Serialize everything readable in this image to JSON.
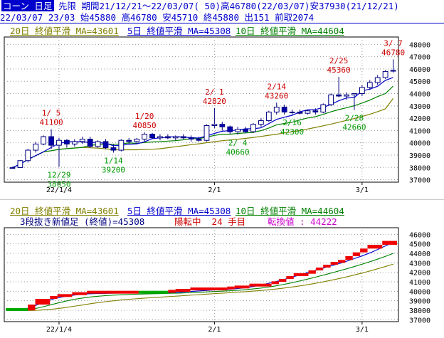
{
  "header": {
    "title": "コーン 日足",
    "line1_info": "先限 期間21/12/21～22/03/07( 50)高46780(22/03/07)安37930(21/12/21)",
    "line2_info": "22/03/07 23/03 始45880 高46780 安45710 終45880 出151 前取2074"
  },
  "colors": {
    "ma20": "#808000",
    "ma5": "#0000cc",
    "ma10": "#008000",
    "ku_red": "#ee0000",
    "ku_green": "#00aa00",
    "annotation_high": "#cc0000",
    "annotation_low": "#009900",
    "shinne_label": "#000080",
    "shinne_status": "#cc0000",
    "tenkan": "#cc00cc"
  },
  "top_legend": {
    "ma20": "20日 終値平滑 MA=43601",
    "ma5": "5日 終値平滑 MA=45308",
    "ma10": "10日 終値平滑 MA=44604"
  },
  "bottom_legend": {
    "ma20": "20日 終値平滑 MA=43601",
    "ma5": "5日 終値平滑 MA=45308",
    "ma10": "10日 終値平滑 MA=44604",
    "shinne_label": "3段抜き新値足 (終値)=45308",
    "shinne_status": "陽転中  24 手目",
    "tenkan": "転換値 : 44222"
  },
  "chart_data": [
    {
      "type": "candlestick",
      "panel": "top",
      "ylim": [
        36800,
        48600
      ],
      "yticks": [
        37000,
        38000,
        39000,
        40000,
        41000,
        42000,
        43000,
        44000,
        45000,
        46000,
        47000,
        48000
      ],
      "xtick_labels": [
        {
          "label": "22/1/4",
          "index": 6
        },
        {
          "label": "2/1",
          "index": 26
        },
        {
          "label": "3/1",
          "index": 45
        }
      ],
      "ohlc": [
        [
          37930,
          38050,
          37930,
          37980
        ],
        [
          37990,
          38600,
          37950,
          38550
        ],
        [
          38550,
          39500,
          38400,
          39400
        ],
        [
          39400,
          40100,
          39200,
          39900
        ],
        [
          39900,
          40600,
          39800,
          40500
        ],
        [
          40500,
          41100,
          39500,
          39800
        ],
        [
          39800,
          40400,
          38050,
          40200
        ],
        [
          40200,
          40300,
          39600,
          39900
        ],
        [
          39900,
          40300,
          39700,
          40100
        ],
        [
          40100,
          40500,
          39900,
          40300
        ],
        [
          40300,
          40500,
          39600,
          39700
        ],
        [
          39700,
          40200,
          39600,
          40100
        ],
        [
          40100,
          40300,
          39500,
          39600
        ],
        [
          39600,
          39900,
          39200,
          39400
        ],
        [
          39400,
          40300,
          39300,
          40200
        ],
        [
          40200,
          40400,
          39900,
          40100
        ],
        [
          40100,
          40400,
          39900,
          40300
        ],
        [
          40300,
          40850,
          40100,
          40700
        ],
        [
          40700,
          40800,
          40300,
          40400
        ],
        [
          40400,
          40700,
          40200,
          40500
        ],
        [
          40500,
          40700,
          40300,
          40400
        ],
        [
          40400,
          40600,
          40200,
          40500
        ],
        [
          40500,
          40700,
          40300,
          40400
        ],
        [
          40400,
          40600,
          40100,
          40300
        ],
        [
          40300,
          40500,
          40100,
          40200
        ],
        [
          40200,
          41500,
          40100,
          41400
        ],
        [
          41400,
          42820,
          41200,
          41500
        ],
        [
          41500,
          41700,
          41000,
          41300
        ],
        [
          41300,
          41400,
          40700,
          40900
        ],
        [
          40900,
          41300,
          40660,
          41100
        ],
        [
          41100,
          41300,
          40800,
          40900
        ],
        [
          40900,
          41600,
          40800,
          41500
        ],
        [
          41500,
          42000,
          41300,
          41800
        ],
        [
          41800,
          42600,
          41700,
          42500
        ],
        [
          42500,
          43260,
          42300,
          42900
        ],
        [
          42900,
          43100,
          42300,
          42500
        ],
        [
          42500,
          42700,
          42300,
          42500
        ],
        [
          42500,
          42700,
          42300,
          42400
        ],
        [
          42400,
          42700,
          42300,
          42600
        ],
        [
          42600,
          42800,
          42300,
          42500
        ],
        [
          42500,
          43200,
          42400,
          43100
        ],
        [
          43100,
          44000,
          43000,
          43900
        ],
        [
          43900,
          45360,
          43700,
          43800
        ],
        [
          43800,
          44100,
          43500,
          43900
        ],
        [
          43900,
          44000,
          42660,
          44000
        ],
        [
          44000,
          44700,
          43800,
          44500
        ],
        [
          44500,
          45100,
          44300,
          44900
        ],
        [
          44900,
          45500,
          44700,
          45300
        ],
        [
          45300,
          45900,
          45200,
          45800
        ],
        [
          45880,
          46780,
          45710,
          45880
        ]
      ],
      "ma5": [
        37980,
        38265,
        38643,
        38958,
        39266,
        39630,
        39960,
        40060,
        40100,
        40060,
        40040,
        40020,
        39960,
        39760,
        39800,
        39880,
        39920,
        40080,
        40340,
        40400,
        40460,
        40500,
        40460,
        40420,
        40380,
        40560,
        40760,
        40940,
        40980,
        41040,
        41140,
        41140,
        41220,
        41560,
        41900,
        42080,
        42240,
        42520,
        42680,
        42700,
        42880,
        43120,
        43420,
        43640,
        43680,
        44220,
        44360,
        44600,
        45080,
        45308
      ],
      "ma10": [
        37980,
        38265,
        38643,
        38958,
        39266,
        39355,
        39469,
        39522,
        39579,
        39630,
        39790,
        39860,
        39910,
        39880,
        39910,
        39990,
        39950,
        40020,
        40070,
        40090,
        40140,
        40180,
        40240,
        40330,
        40340,
        40470,
        40600,
        40700,
        40700,
        40760,
        40800,
        40850,
        40990,
        41200,
        41460,
        41570,
        41670,
        41860,
        42020,
        42120,
        42310,
        42520,
        42700,
        42850,
        43010,
        43230,
        43470,
        43760,
        44000,
        44604
      ],
      "ma20": [
        37980,
        38265,
        38643,
        38958,
        39266,
        39355,
        39469,
        39522,
        39579,
        39630,
        39593,
        39570,
        39510,
        39440,
        39420,
        39430,
        39430,
        39450,
        39470,
        39520,
        39600,
        39680,
        39760,
        39850,
        39920,
        40010,
        40090,
        40170,
        40230,
        40290,
        40360,
        40440,
        40520,
        40610,
        40700,
        40800,
        40900,
        41010,
        41120,
        41250,
        41380,
        41520,
        41670,
        41820,
        41970,
        42140,
        42320,
        42530,
        42760,
        43601
      ],
      "annotations": [
        {
          "label": "12/29",
          "value": "38050",
          "kind": "low",
          "index": 6
        },
        {
          "label": "1/ 5",
          "value": "41100",
          "kind": "high",
          "index": 5
        },
        {
          "label": "1/14",
          "value": "39200",
          "kind": "low",
          "index": 13
        },
        {
          "label": "1/20",
          "value": "40850",
          "kind": "high",
          "index": 17
        },
        {
          "label": "2/ 1",
          "value": "42820",
          "kind": "high",
          "index": 26
        },
        {
          "label": "2/ 4",
          "value": "40660",
          "kind": "low",
          "index": 29
        },
        {
          "label": "2/14",
          "value": "43260",
          "kind": "high",
          "index": 34
        },
        {
          "label": "2/16",
          "value": "42300",
          "kind": "low",
          "index": 36
        },
        {
          "label": "2/25",
          "value": "45360",
          "kind": "high",
          "index": 42
        },
        {
          "label": "2/28",
          "value": "42660",
          "kind": "low",
          "index": 44
        },
        {
          "label": "3/ 7",
          "value": "46780",
          "kind": "high",
          "index": 49
        }
      ]
    },
    {
      "type": "new-price-bars",
      "panel": "bottom",
      "ylim": [
        36800,
        46700
      ],
      "yticks": [
        37000,
        38000,
        39000,
        40000,
        41000,
        42000,
        43000,
        44000,
        45000,
        46000
      ],
      "xtick_labels": [
        {
          "label": "22/1/4",
          "index": 6
        },
        {
          "label": "2/1",
          "index": 26
        },
        {
          "label": "3/1",
          "index": 45
        }
      ],
      "bricks": [
        {
          "from": 37930,
          "to": 37990,
          "color": "green",
          "start": 0,
          "end": 3
        },
        {
          "from": 37990,
          "to": 38600,
          "color": "red",
          "start": 3,
          "end": 4
        },
        {
          "from": 38600,
          "to": 39200,
          "color": "red",
          "start": 4,
          "end": 6
        },
        {
          "from": 39200,
          "to": 39400,
          "color": "red",
          "start": 6,
          "end": 7
        },
        {
          "from": 39400,
          "to": 39600,
          "color": "red",
          "start": 7,
          "end": 9
        },
        {
          "from": 39600,
          "to": 39750,
          "color": "red",
          "start": 9,
          "end": 11
        },
        {
          "from": 39750,
          "to": 39850,
          "color": "red",
          "start": 11,
          "end": 18
        },
        {
          "from": 39750,
          "to": 39850,
          "color": "green",
          "start": 18,
          "end": 22
        },
        {
          "from": 39850,
          "to": 39950,
          "color": "red",
          "start": 22,
          "end": 23
        },
        {
          "from": 39950,
          "to": 40100,
          "color": "red",
          "start": 23,
          "end": 25
        },
        {
          "from": 40100,
          "to": 40200,
          "color": "red",
          "start": 25,
          "end": 30
        },
        {
          "from": 40200,
          "to": 40300,
          "color": "red",
          "start": 30,
          "end": 31
        },
        {
          "from": 40300,
          "to": 40500,
          "color": "red",
          "start": 31,
          "end": 33
        },
        {
          "from": 40500,
          "to": 40750,
          "color": "red",
          "start": 33,
          "end": 36
        },
        {
          "from": 40750,
          "to": 41000,
          "color": "red",
          "start": 36,
          "end": 37
        },
        {
          "from": 41000,
          "to": 41300,
          "color": "red",
          "start": 37,
          "end": 38
        },
        {
          "from": 41300,
          "to": 41600,
          "color": "red",
          "start": 38,
          "end": 39
        },
        {
          "from": 41600,
          "to": 41850,
          "color": "red",
          "start": 39,
          "end": 41
        },
        {
          "from": 41850,
          "to": 42200,
          "color": "red",
          "start": 41,
          "end": 42
        },
        {
          "from": 42200,
          "to": 42500,
          "color": "red",
          "start": 42,
          "end": 43
        },
        {
          "from": 42500,
          "to": 42800,
          "color": "red",
          "start": 43,
          "end": 44
        },
        {
          "from": 42800,
          "to": 43000,
          "color": "red",
          "start": 44,
          "end": 45
        },
        {
          "from": 43000,
          "to": 43300,
          "color": "red",
          "start": 45,
          "end": 46
        },
        {
          "from": 43300,
          "to": 43700,
          "color": "red",
          "start": 46,
          "end": 47
        },
        {
          "from": 43700,
          "to": 44100,
          "color": "red",
          "start": 47,
          "end": 48
        },
        {
          "from": 44100,
          "to": 44500,
          "color": "red",
          "start": 48,
          "end": 49
        },
        {
          "from": 44500,
          "to": 44900,
          "color": "red",
          "start": 49,
          "end": 51
        },
        {
          "from": 44900,
          "to": 45308,
          "color": "red",
          "start": 51,
          "end": 53
        }
      ],
      "bar_count": 53,
      "ma5": [
        37960,
        37980,
        38100,
        38320,
        38650,
        38950,
        39200,
        39380,
        39520,
        39620,
        39700,
        39740,
        39760,
        39780,
        39790,
        39800,
        39800,
        39810,
        39820,
        39830,
        39840,
        39850,
        39870,
        39900,
        39950,
        40000,
        40050,
        40100,
        40150,
        40190,
        40230,
        40290,
        40380,
        40500,
        40650,
        40820,
        41000,
        41200,
        41420,
        41650,
        41880,
        42100,
        42330,
        42560,
        42780,
        43000,
        43250,
        43520,
        43800,
        44100,
        44450,
        44800,
        45150
      ],
      "ma10": [
        37960,
        37970,
        38000,
        38100,
        38260,
        38450,
        38650,
        38850,
        39030,
        39180,
        39300,
        39400,
        39480,
        39540,
        39590,
        39630,
        39660,
        39690,
        39710,
        39730,
        39750,
        39770,
        39790,
        39810,
        39840,
        39870,
        39900,
        39940,
        39980,
        40020,
        40060,
        40110,
        40170,
        40240,
        40330,
        40440,
        40560,
        40700,
        40860,
        41030,
        41210,
        41400,
        41600,
        41800,
        42010,
        42220,
        42440,
        42670,
        42910,
        43160,
        43420,
        43700,
        44000
      ],
      "ma20": [
        37960,
        37960,
        37970,
        37980,
        38010,
        38060,
        38130,
        38220,
        38330,
        38450,
        38570,
        38690,
        38800,
        38900,
        38990,
        39070,
        39140,
        39200,
        39260,
        39310,
        39360,
        39410,
        39460,
        39510,
        39560,
        39610,
        39660,
        39710,
        39760,
        39810,
        39860,
        39910,
        39960,
        40020,
        40080,
        40150,
        40230,
        40320,
        40420,
        40530,
        40650,
        40780,
        40920,
        41070,
        41230,
        41400,
        41580,
        41770,
        41970,
        42180,
        42400,
        42630,
        42870
      ]
    }
  ]
}
